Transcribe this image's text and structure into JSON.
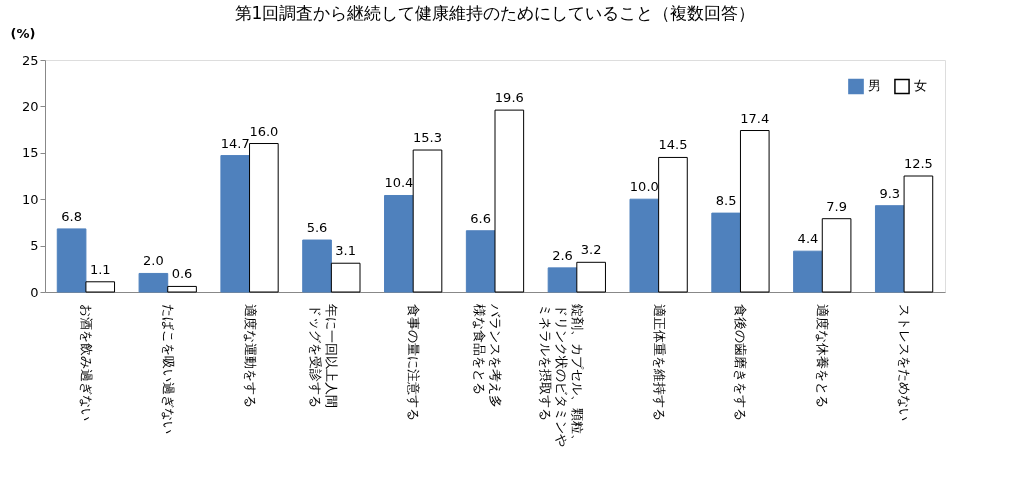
{
  "chart_data": {
    "type": "bar",
    "title": "第1回調査から継続して健康維持のためにしていること（複数回答）",
    "ylabel": "(%)",
    "categories": [
      "お酒を飲み過ぎない",
      "たばこを吸い過ぎない",
      "適度な運動をする",
      "年に一回以上人間ドッグを受診する",
      "食事の量に注意する",
      "バランスを考え多様な食品をとる",
      "錠剤、カプセル、顆粒、ドリンク状のビタミンやミネラルを摂取する",
      "適正体重を維持する",
      "食後の歯磨きをする",
      "適度な休養をとる",
      "ストレスをためない"
    ],
    "series": [
      {
        "name": "男",
        "color": "#4f81bd",
        "values": [
          6.8,
          2.0,
          14.7,
          5.6,
          10.4,
          6.6,
          2.6,
          10.0,
          8.5,
          4.4,
          9.3
        ]
      },
      {
        "name": "女",
        "color": "#ffffff",
        "values": [
          1.1,
          0.6,
          16.0,
          3.1,
          15.3,
          19.6,
          3.2,
          14.5,
          17.4,
          7.9,
          12.5
        ]
      }
    ],
    "value_labels": [
      [
        "6.8",
        "2.0",
        "14.7",
        "5.6",
        "10.4",
        "6.6",
        "2.6",
        "10.0",
        "8.5",
        "4.4",
        "9.3"
      ],
      [
        "1.1",
        "0.6",
        "16.0",
        "3.1",
        "15.3",
        "19.6",
        "3.2",
        "14.5",
        "17.4",
        "7.9",
        "12.5"
      ]
    ],
    "ylim": [
      0,
      25
    ],
    "yticks": [
      0,
      5,
      10,
      15,
      20,
      25
    ],
    "grid": false,
    "legend": "top right"
  }
}
